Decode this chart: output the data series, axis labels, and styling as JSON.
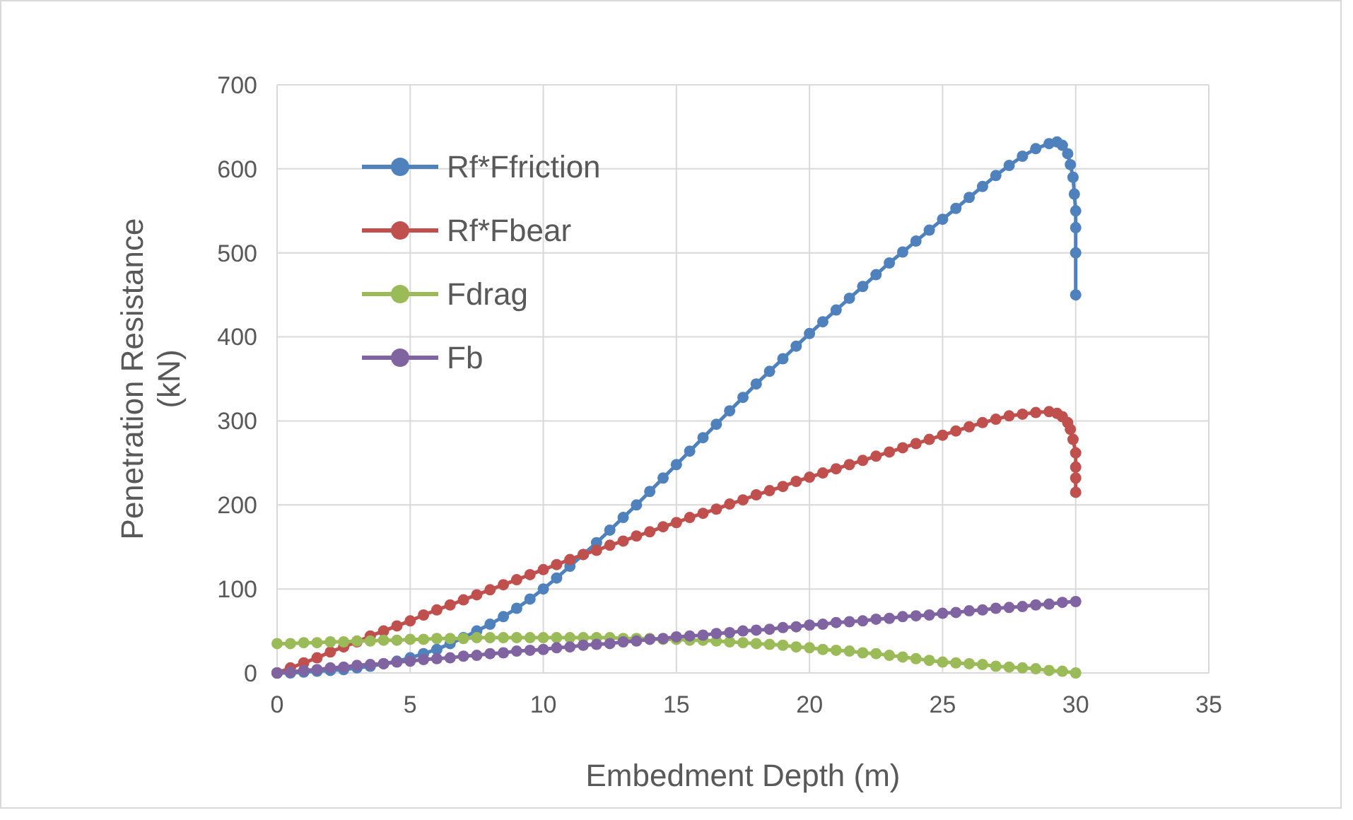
{
  "chart_data": {
    "type": "line",
    "xlabel": "Embedment Depth (m)",
    "ylabel": "Penetration Resistance (kN)",
    "xlim": [
      0,
      35
    ],
    "ylim": [
      0,
      700
    ],
    "xticks": [
      0,
      5,
      10,
      15,
      20,
      25,
      30,
      35
    ],
    "yticks": [
      0,
      100,
      200,
      300,
      400,
      500,
      600,
      700
    ],
    "grid": true,
    "legend": "top left",
    "marker": "circle",
    "line_style": "solid",
    "x": [
      0,
      0.5,
      1,
      1.5,
      2,
      2.5,
      3,
      3.5,
      4,
      4.5,
      5,
      5.5,
      6,
      6.5,
      7,
      7.5,
      8,
      8.5,
      9,
      9.5,
      10,
      10.5,
      11,
      11.5,
      12,
      12.5,
      13,
      13.5,
      14,
      14.5,
      15,
      15.5,
      16,
      16.5,
      17,
      17.5,
      18,
      18.5,
      19,
      19.5,
      20,
      20.5,
      21,
      21.5,
      22,
      22.5,
      23,
      23.5,
      24,
      24.5,
      25,
      25.5,
      26,
      26.5,
      27,
      27.5,
      28,
      28.5,
      29,
      29.5,
      30
    ],
    "series": [
      {
        "name": "Rf*Ffriction",
        "color": "#4f81bd",
        "x": [
          0,
          0.5,
          1,
          1.5,
          2,
          2.5,
          3,
          3.5,
          4,
          4.5,
          5,
          5.5,
          6,
          6.5,
          7,
          7.5,
          8,
          8.5,
          9,
          9.5,
          10,
          10.5,
          11,
          11.5,
          12,
          12.5,
          13,
          13.5,
          14,
          14.5,
          15,
          15.5,
          16,
          16.5,
          17,
          17.5,
          18,
          18.5,
          19,
          19.5,
          20,
          20.5,
          21,
          21.5,
          22,
          22.5,
          23,
          23.5,
          24,
          24.5,
          25,
          25.5,
          26,
          26.5,
          27,
          27.5,
          28,
          28.5,
          29,
          29.3,
          29.5,
          29.7,
          29.8,
          29.9,
          29.95,
          30,
          30,
          30,
          30
        ],
        "values": [
          0,
          0,
          1,
          2,
          3,
          4,
          6,
          8,
          11,
          14,
          18,
          23,
          28,
          35,
          42,
          50,
          58,
          67,
          77,
          88,
          100,
          113,
          127,
          141,
          155,
          170,
          185,
          200,
          216,
          232,
          248,
          264,
          280,
          296,
          312,
          328,
          344,
          359,
          374,
          389,
          404,
          418,
          432,
          446,
          460,
          474,
          488,
          501,
          514,
          527,
          540,
          553,
          566,
          579,
          592,
          604,
          615,
          624,
          630,
          632,
          628,
          618,
          605,
          590,
          570,
          550,
          530,
          500,
          450
        ]
      },
      {
        "name": "Rf*Fbear",
        "color": "#c0504d",
        "x": [
          0,
          0.5,
          1,
          1.5,
          2,
          2.5,
          3,
          3.5,
          4,
          4.5,
          5,
          5.5,
          6,
          6.5,
          7,
          7.5,
          8,
          8.5,
          9,
          9.5,
          10,
          10.5,
          11,
          11.5,
          12,
          12.5,
          13,
          13.5,
          14,
          14.5,
          15,
          15.5,
          16,
          16.5,
          17,
          17.5,
          18,
          18.5,
          19,
          19.5,
          20,
          20.5,
          21,
          21.5,
          22,
          22.5,
          23,
          23.5,
          24,
          24.5,
          25,
          25.5,
          26,
          26.5,
          27,
          27.5,
          28,
          28.5,
          29,
          29.3,
          29.5,
          29.7,
          29.8,
          29.9,
          30,
          30,
          30,
          30
        ],
        "values": [
          0,
          6,
          12,
          18,
          25,
          31,
          37,
          44,
          50,
          56,
          62,
          69,
          75,
          81,
          87,
          93,
          99,
          105,
          111,
          117,
          123,
          129,
          135,
          141,
          146,
          152,
          157,
          163,
          168,
          174,
          179,
          185,
          190,
          195,
          201,
          206,
          212,
          217,
          222,
          228,
          233,
          238,
          243,
          248,
          253,
          258,
          263,
          268,
          273,
          278,
          283,
          288,
          293,
          298,
          302,
          306,
          308,
          310,
          311,
          309,
          305,
          298,
          290,
          278,
          262,
          245,
          232,
          215
        ]
      },
      {
        "name": "Fdrag",
        "color": "#9bbb59",
        "values": [
          35,
          35,
          36,
          36,
          37,
          37,
          38,
          38,
          39,
          39,
          40,
          40,
          41,
          41,
          41,
          42,
          42,
          42,
          42,
          42,
          42,
          42,
          42,
          42,
          42,
          42,
          41,
          41,
          41,
          40,
          40,
          39,
          39,
          38,
          37,
          36,
          35,
          34,
          33,
          31,
          30,
          28,
          27,
          26,
          24,
          23,
          21,
          19,
          17,
          15,
          13,
          12,
          11,
          10,
          8,
          7,
          6,
          5,
          3,
          2,
          0
        ]
      },
      {
        "name": "Fb",
        "color": "#8064a2",
        "values": [
          0,
          1,
          3,
          4,
          6,
          7,
          9,
          10,
          11,
          13,
          14,
          16,
          17,
          18,
          20,
          21,
          23,
          24,
          26,
          27,
          28,
          30,
          31,
          33,
          34,
          35,
          37,
          38,
          40,
          41,
          43,
          44,
          45,
          47,
          48,
          50,
          51,
          52,
          54,
          55,
          57,
          58,
          60,
          61,
          62,
          64,
          65,
          67,
          68,
          69,
          71,
          72,
          74,
          75,
          77,
          78,
          79,
          81,
          82,
          84,
          85
        ]
      }
    ]
  }
}
